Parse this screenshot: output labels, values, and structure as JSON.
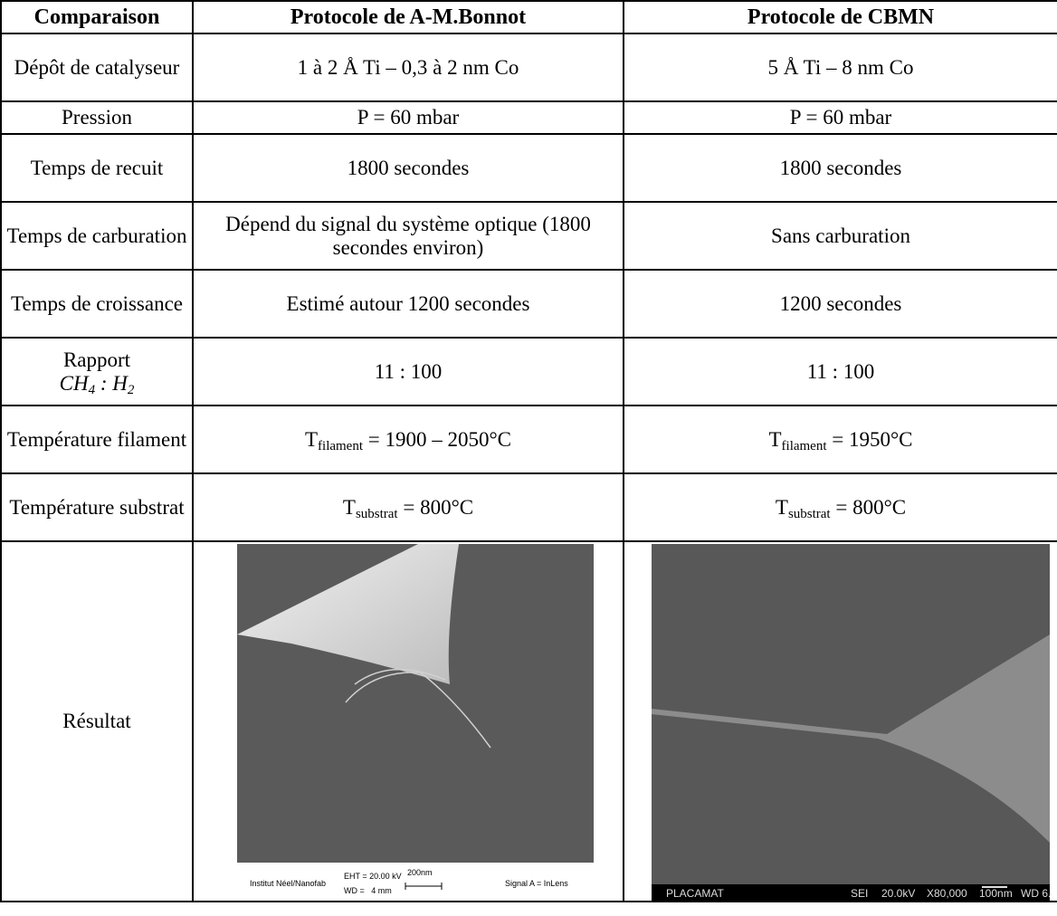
{
  "table": {
    "header": [
      "Comparaison",
      "Protocole de A-M.Bonnot",
      "Protocole de CBMN"
    ],
    "rows": [
      [
        "Dépôt de catalyseur",
        "1 à 2 Å Ti – 0,3 à 2 nm Co",
        "5 Å Ti – 8 nm Co"
      ],
      [
        "Pression",
        "P = 60 mbar",
        "P = 60 mbar"
      ],
      [
        "Temps de recuit",
        "1800 secondes",
        "1800 secondes"
      ],
      [
        "Temps de carburation",
        "Dépend du signal du système optique (1800 secondes environ)",
        "Sans carburation"
      ],
      [
        "Temps de croissance",
        "Estimé autour 1200 secondes",
        "1200 secondes"
      ],
      [
        {
          "text": "Rapport",
          "formula": [
            "CH",
            "4",
            " : H",
            "2"
          ]
        },
        "11 : 100",
        "11 : 100"
      ],
      [
        "Température filament",
        {
          "main": "T",
          "sub": "filament",
          "rest": " = 1900 – 2050°C"
        },
        {
          "main": "T",
          "sub": "filament",
          "rest": " = 1950°C"
        }
      ],
      [
        "Température substrat",
        {
          "main": "T",
          "sub": "substrat",
          "rest": " = 800°C"
        },
        {
          "main": "T",
          "sub": "substrat",
          "rest": " = 800°C"
        }
      ]
    ],
    "result": {
      "label": "Résultat",
      "left_image": {
        "institute": "Institut Néel/Nanofab",
        "eht": "EHT = 20.00 kV",
        "wd": "WD =   4 mm",
        "scale": "200nm",
        "signal": "Signal A = InLens"
      },
      "right_image": {
        "lab": "PLACAMAT",
        "mode": "SEI",
        "voltage": "20.0kV",
        "magnification": "X80,000",
        "scale": "100nm",
        "wd": "WD 6."
      }
    }
  }
}
